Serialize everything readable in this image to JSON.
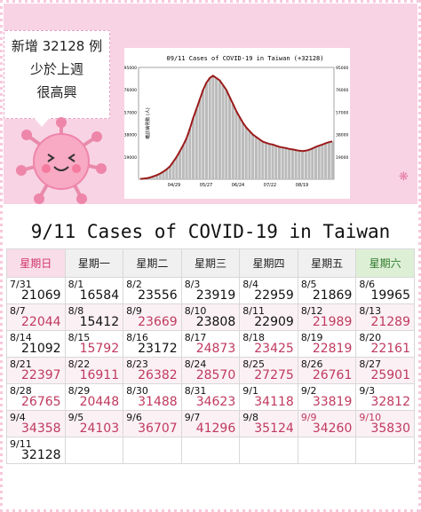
{
  "bubble": {
    "line1": "新增 32128 例",
    "line2": "少於上週",
    "line3": "很高興"
  },
  "chart_data": {
    "type": "bar",
    "title": "09/11 Cases of COVID-19 in Taiwan (+32128)",
    "ylabel": "確診病例數 (人)",
    "ylim": [
      0,
      95000
    ],
    "y_ticks": [
      "19000",
      "38000",
      "57000",
      "76000",
      "95000"
    ],
    "x_ticks": [
      "04/29",
      "05/27",
      "06/24",
      "07/22",
      "08/19"
    ],
    "series": [
      {
        "values": [
          300,
          500,
          800,
          1500,
          2500,
          3500,
          4800,
          6500,
          8500,
          11000,
          15000,
          19000,
          24000,
          29000,
          35000,
          43000,
          52000,
          60000,
          68000,
          76000,
          82000,
          86000,
          88000,
          86000,
          84000,
          80000,
          76000,
          70000,
          64000,
          58000,
          53000,
          48000,
          44000,
          41000,
          38000,
          36000,
          34000,
          32000,
          31000,
          30000,
          29500,
          28500,
          27500,
          27000,
          26500,
          25800,
          25300,
          24800,
          24300,
          24000,
          24300,
          25000,
          26200,
          27500,
          28500,
          29500,
          30600,
          31500,
          32128
        ]
      }
    ],
    "colors": {
      "bars": "#bbbbbb",
      "line": "#9b1b1b"
    }
  },
  "table": {
    "title": "9/11 Cases of COVID-19 in Taiwan",
    "weekdays": [
      "星期日",
      "星期一",
      "星期二",
      "星期三",
      "星期四",
      "星期五",
      "星期六"
    ],
    "weeks": [
      [
        {
          "d": "7/31",
          "v": "21069",
          "c": "blk"
        },
        {
          "d": "8/1",
          "v": "16584",
          "c": "blk"
        },
        {
          "d": "8/2",
          "v": "23556",
          "c": "blk"
        },
        {
          "d": "8/3",
          "v": "23919",
          "c": "blk"
        },
        {
          "d": "8/4",
          "v": "22959",
          "c": "blk"
        },
        {
          "d": "8/5",
          "v": "21869",
          "c": "blk"
        },
        {
          "d": "8/6",
          "v": "19965",
          "c": "blk"
        }
      ],
      [
        {
          "d": "8/7",
          "v": "22044",
          "c": "red"
        },
        {
          "d": "8/8",
          "v": "15412",
          "c": "blk"
        },
        {
          "d": "8/9",
          "v": "23669",
          "c": "red"
        },
        {
          "d": "8/10",
          "v": "23808",
          "c": "blk"
        },
        {
          "d": "8/11",
          "v": "22909",
          "c": "blk"
        },
        {
          "d": "8/12",
          "v": "21989",
          "c": "red"
        },
        {
          "d": "8/13",
          "v": "21289",
          "c": "red"
        }
      ],
      [
        {
          "d": "8/14",
          "v": "21092",
          "c": "blk"
        },
        {
          "d": "8/15",
          "v": "15792",
          "c": "red"
        },
        {
          "d": "8/16",
          "v": "23172",
          "c": "blk"
        },
        {
          "d": "8/17",
          "v": "24873",
          "c": "red"
        },
        {
          "d": "8/18",
          "v": "23425",
          "c": "red"
        },
        {
          "d": "8/19",
          "v": "22819",
          "c": "red"
        },
        {
          "d": "8/20",
          "v": "22161",
          "c": "red"
        }
      ],
      [
        {
          "d": "8/21",
          "v": "22397",
          "c": "red"
        },
        {
          "d": "8/22",
          "v": "16911",
          "c": "red"
        },
        {
          "d": "8/23",
          "v": "26382",
          "c": "red"
        },
        {
          "d": "8/24",
          "v": "28570",
          "c": "red"
        },
        {
          "d": "8/25",
          "v": "27275",
          "c": "red"
        },
        {
          "d": "8/26",
          "v": "26761",
          "c": "red"
        },
        {
          "d": "8/27",
          "v": "25901",
          "c": "red"
        }
      ],
      [
        {
          "d": "8/28",
          "v": "26765",
          "c": "red"
        },
        {
          "d": "8/29",
          "v": "20448",
          "c": "red"
        },
        {
          "d": "8/30",
          "v": "31488",
          "c": "red"
        },
        {
          "d": "8/31",
          "v": "34623",
          "c": "red"
        },
        {
          "d": "9/1",
          "v": "34118",
          "c": "red"
        },
        {
          "d": "9/2",
          "v": "33819",
          "c": "red"
        },
        {
          "d": "9/3",
          "v": "32812",
          "c": "red"
        }
      ],
      [
        {
          "d": "9/4",
          "v": "34358",
          "c": "red"
        },
        {
          "d": "9/5",
          "v": "24103",
          "c": "red"
        },
        {
          "d": "9/6",
          "v": "36707",
          "c": "red"
        },
        {
          "d": "9/7",
          "v": "41296",
          "c": "red"
        },
        {
          "d": "9/8",
          "v": "35124",
          "c": "red"
        },
        {
          "d": "9/9",
          "v": "34260",
          "c": "red",
          "dc": "red"
        },
        {
          "d": "9/10",
          "v": "35830",
          "c": "red",
          "dc": "red"
        }
      ],
      [
        {
          "d": "9/11",
          "v": "32128",
          "c": "blk"
        },
        {
          "d": "",
          "v": "",
          "c": "blk"
        },
        {
          "d": "",
          "v": "",
          "c": "blk"
        },
        {
          "d": "",
          "v": "",
          "c": "blk"
        },
        {
          "d": "",
          "v": "",
          "c": "blk"
        },
        {
          "d": "",
          "v": "",
          "c": "blk"
        },
        {
          "d": "",
          "v": "",
          "c": "blk"
        }
      ]
    ]
  }
}
